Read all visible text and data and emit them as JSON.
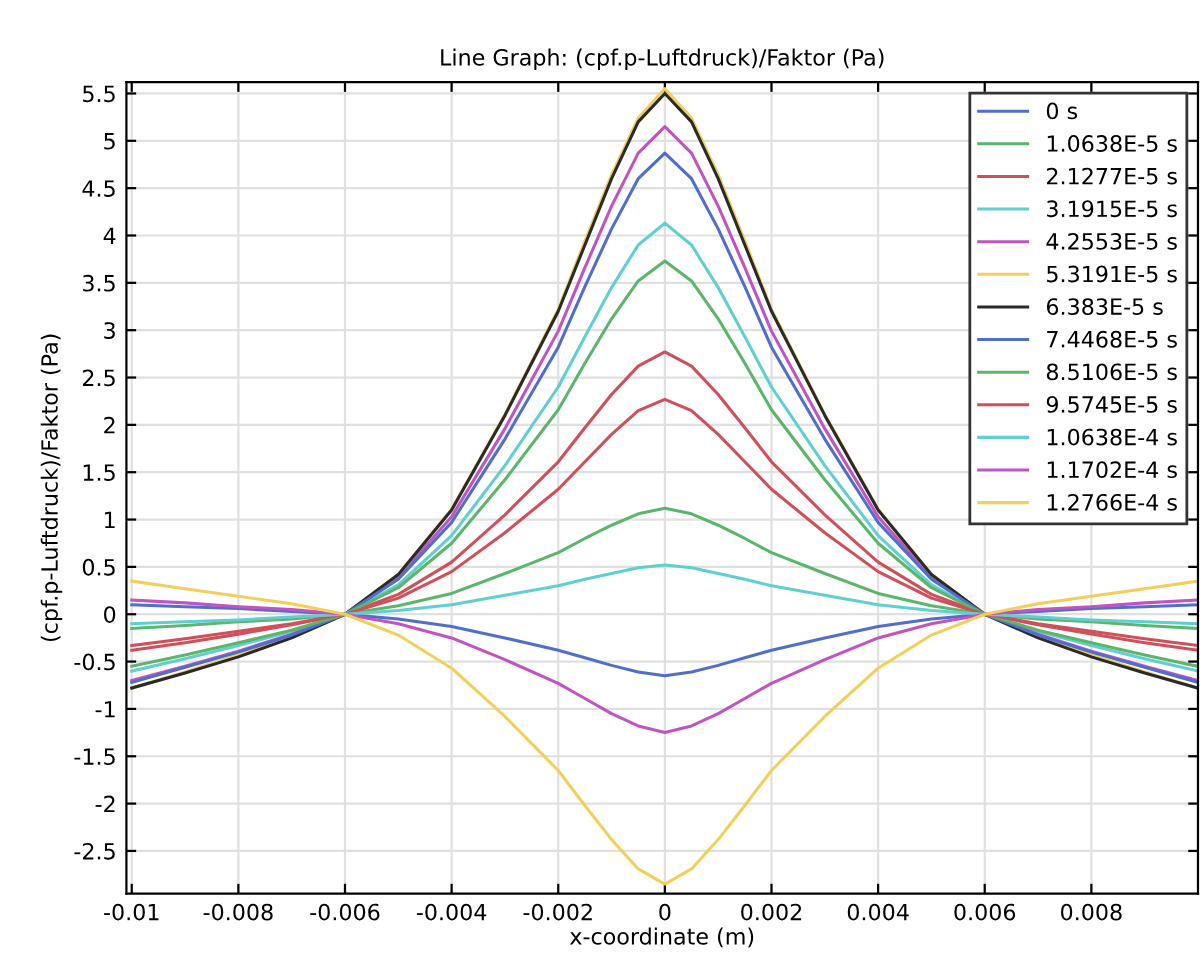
{
  "chart_data": {
    "type": "line",
    "title": "Line Graph: (cpf.p-Luftdruck)/Faktor (Pa)",
    "xlabel": "x-coordinate (m)",
    "ylabel": "(cpf.p-Luftdruck)/Faktor (Pa)",
    "x": [
      -0.01,
      -0.009,
      -0.008,
      -0.007,
      -0.006,
      -0.005,
      -0.004,
      -0.003,
      -0.002,
      -0.0015,
      -0.001,
      -0.0005,
      0,
      0.0005,
      0.001,
      0.0015,
      0.002,
      0.003,
      0.004,
      0.005,
      0.006,
      0.007,
      0.008,
      0.009,
      0.01
    ],
    "series": [
      {
        "name": "0 s",
        "color": "#4f6fcb",
        "values": [
          0.1,
          0.08,
          0.06,
          0.03,
          0,
          -0.05,
          -0.13,
          -0.25,
          -0.38,
          -0.46,
          -0.54,
          -0.61,
          -0.65,
          -0.61,
          -0.54,
          -0.46,
          -0.38,
          -0.25,
          -0.13,
          -0.05,
          0,
          0.03,
          0.06,
          0.08,
          0.1
        ]
      },
      {
        "name": "1.0638E-5 s",
        "color": "#5bb56b",
        "values": [
          -0.15,
          -0.12,
          -0.08,
          -0.05,
          0,
          0.09,
          0.22,
          0.43,
          0.65,
          0.8,
          0.94,
          1.06,
          1.12,
          1.06,
          0.94,
          0.8,
          0.65,
          0.43,
          0.22,
          0.09,
          0,
          -0.05,
          -0.08,
          -0.12,
          -0.15
        ]
      },
      {
        "name": "2.1277E-5 s",
        "color": "#d0505a",
        "values": [
          -0.38,
          -0.3,
          -0.21,
          -0.11,
          0,
          0.21,
          0.55,
          1.05,
          1.61,
          1.97,
          2.32,
          2.62,
          2.77,
          2.62,
          2.32,
          1.97,
          1.61,
          1.05,
          0.55,
          0.21,
          0,
          -0.11,
          -0.21,
          -0.3,
          -0.38
        ]
      },
      {
        "name": "3.1915E-5 s",
        "color": "#5fcfd0",
        "values": [
          -0.6,
          -0.47,
          -0.33,
          -0.18,
          0,
          0.31,
          0.83,
          1.57,
          2.4,
          2.93,
          3.45,
          3.9,
          4.13,
          3.9,
          3.45,
          2.93,
          2.4,
          1.57,
          0.83,
          0.31,
          0,
          -0.18,
          -0.33,
          -0.47,
          -0.6
        ]
      },
      {
        "name": "4.2553E-5 s",
        "color": "#c054c0",
        "values": [
          -0.7,
          -0.55,
          -0.39,
          -0.21,
          0,
          0.39,
          1.03,
          1.96,
          2.99,
          3.66,
          4.31,
          4.87,
          5.15,
          4.87,
          4.31,
          3.66,
          2.99,
          1.96,
          1.03,
          0.39,
          0,
          -0.21,
          -0.39,
          -0.55,
          -0.7
        ]
      },
      {
        "name": "5.3191E-5 s",
        "color": "#f2cf5a",
        "values": [
          -0.78,
          -0.61,
          -0.43,
          -0.23,
          0,
          0.42,
          1.11,
          2.11,
          3.22,
          3.94,
          4.64,
          5.24,
          5.55,
          5.24,
          4.64,
          3.94,
          3.22,
          2.11,
          1.11,
          0.42,
          0,
          -0.23,
          -0.43,
          -0.61,
          -0.78
        ]
      },
      {
        "name": "6.383E-5 s",
        "color": "#2a2a2a",
        "values": [
          -0.78,
          -0.62,
          -0.45,
          -0.25,
          0,
          0.42,
          1.1,
          2.1,
          3.2,
          3.9,
          4.6,
          5.2,
          5.5,
          5.2,
          4.6,
          3.9,
          3.2,
          2.1,
          1.1,
          0.42,
          0,
          -0.25,
          -0.45,
          -0.62,
          -0.78
        ]
      },
      {
        "name": "7.4468E-5 s",
        "color": "#4f6fcb",
        "values": [
          -0.72,
          -0.56,
          -0.4,
          -0.22,
          0,
          0.37,
          0.97,
          1.85,
          2.82,
          3.46,
          4.07,
          4.6,
          4.87,
          4.6,
          4.07,
          3.46,
          2.82,
          1.85,
          0.97,
          0.37,
          0,
          -0.22,
          -0.4,
          -0.56,
          -0.72
        ]
      },
      {
        "name": "8.5106E-5 s",
        "color": "#5bb56b",
        "values": [
          -0.55,
          -0.43,
          -0.3,
          -0.17,
          0,
          0.28,
          0.75,
          1.42,
          2.16,
          2.65,
          3.12,
          3.52,
          3.73,
          3.52,
          3.12,
          2.65,
          2.16,
          1.42,
          0.75,
          0.28,
          0,
          -0.17,
          -0.3,
          -0.43,
          -0.55
        ]
      },
      {
        "name": "9.5745E-5 s",
        "color": "#d0505a",
        "values": [
          -0.33,
          -0.26,
          -0.18,
          -0.1,
          0,
          0.17,
          0.45,
          0.86,
          1.32,
          1.61,
          1.9,
          2.15,
          2.27,
          2.15,
          1.9,
          1.61,
          1.32,
          0.86,
          0.45,
          0.17,
          0,
          -0.1,
          -0.18,
          -0.26,
          -0.33
        ]
      },
      {
        "name": "1.0638E-4 s",
        "color": "#5fcfd0",
        "values": [
          -0.1,
          -0.08,
          -0.06,
          -0.03,
          0,
          0.04,
          0.1,
          0.2,
          0.3,
          0.37,
          0.43,
          0.49,
          0.52,
          0.49,
          0.43,
          0.37,
          0.3,
          0.2,
          0.1,
          0.04,
          0,
          -0.03,
          -0.06,
          -0.08,
          -0.1
        ]
      },
      {
        "name": "1.1702E-4 s",
        "color": "#c054c0",
        "values": [
          0.15,
          0.12,
          0.08,
          0.05,
          0,
          -0.1,
          -0.25,
          -0.48,
          -0.73,
          -0.89,
          -1.05,
          -1.18,
          -1.25,
          -1.18,
          -1.05,
          -0.89,
          -0.73,
          -0.48,
          -0.25,
          -0.1,
          0,
          0.05,
          0.08,
          0.12,
          0.15
        ]
      },
      {
        "name": "1.2766E-4 s",
        "color": "#f2cf5a",
        "values": [
          0.35,
          0.27,
          0.19,
          0.11,
          0,
          -0.22,
          -0.57,
          -1.08,
          -1.65,
          -2.02,
          -2.38,
          -2.69,
          -2.85,
          -2.69,
          -2.38,
          -2.02,
          -1.65,
          -1.08,
          -0.57,
          -0.22,
          0,
          0.11,
          0.19,
          0.27,
          0.35
        ]
      }
    ],
    "xlim": [
      -0.0101,
      0.01
    ],
    "ylim": [
      -2.95,
      5.62
    ],
    "xticks": [
      -0.01,
      -0.008,
      -0.006,
      -0.004,
      -0.002,
      0,
      0.002,
      0.004,
      0.006,
      0.008
    ],
    "yticks": [
      -2.5,
      -2,
      -1.5,
      -1,
      -0.5,
      0,
      0.5,
      1,
      1.5,
      2,
      2.5,
      3,
      3.5,
      4,
      4.5,
      5,
      5.5
    ],
    "grid": true,
    "legend": "top right",
    "marker": "none",
    "line_style": "solid"
  }
}
